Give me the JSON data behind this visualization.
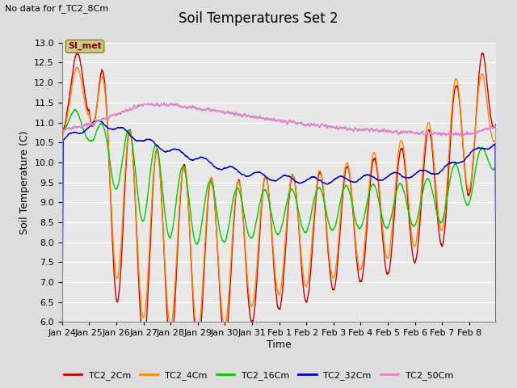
{
  "title": "Soil Temperatures Set 2",
  "subtitle": "No data for f_TC2_8Cm",
  "ylabel": "Soil Temperature (C)",
  "xlabel": "Time",
  "ylim": [
    6.0,
    13.0
  ],
  "yticks": [
    6.0,
    6.5,
    7.0,
    7.5,
    8.0,
    8.5,
    9.0,
    9.5,
    10.0,
    10.5,
    11.0,
    11.5,
    12.0,
    12.5,
    13.0
  ],
  "xtick_labels": [
    "Jan 24",
    "Jan 25",
    "Jan 26",
    "Jan 27",
    "Jan 28",
    "Jan 29",
    "Jan 30",
    "Jan 31",
    "Feb 1",
    "Feb 2",
    "Feb 3",
    "Feb 4",
    "Feb 5",
    "Feb 6",
    "Feb 7",
    "Feb 8"
  ],
  "series_colors": {
    "TC2_2Cm": "#cc0000",
    "TC2_4Cm": "#ff8800",
    "TC2_16Cm": "#00cc00",
    "TC2_32Cm": "#0000cc",
    "TC2_50Cm": "#dd88cc"
  },
  "legend_label": "SI_met",
  "legend_box_facecolor": "#cccc88",
  "legend_text_color": "#880000",
  "legend_box_edgecolor": "#888800",
  "fig_bg_color": "#dddddd",
  "plot_bg_color": "#e8e8e8",
  "grid_color": "#ffffff",
  "title_fontsize": 12,
  "axis_fontsize": 9,
  "tick_fontsize": 8,
  "n_points": 4800
}
